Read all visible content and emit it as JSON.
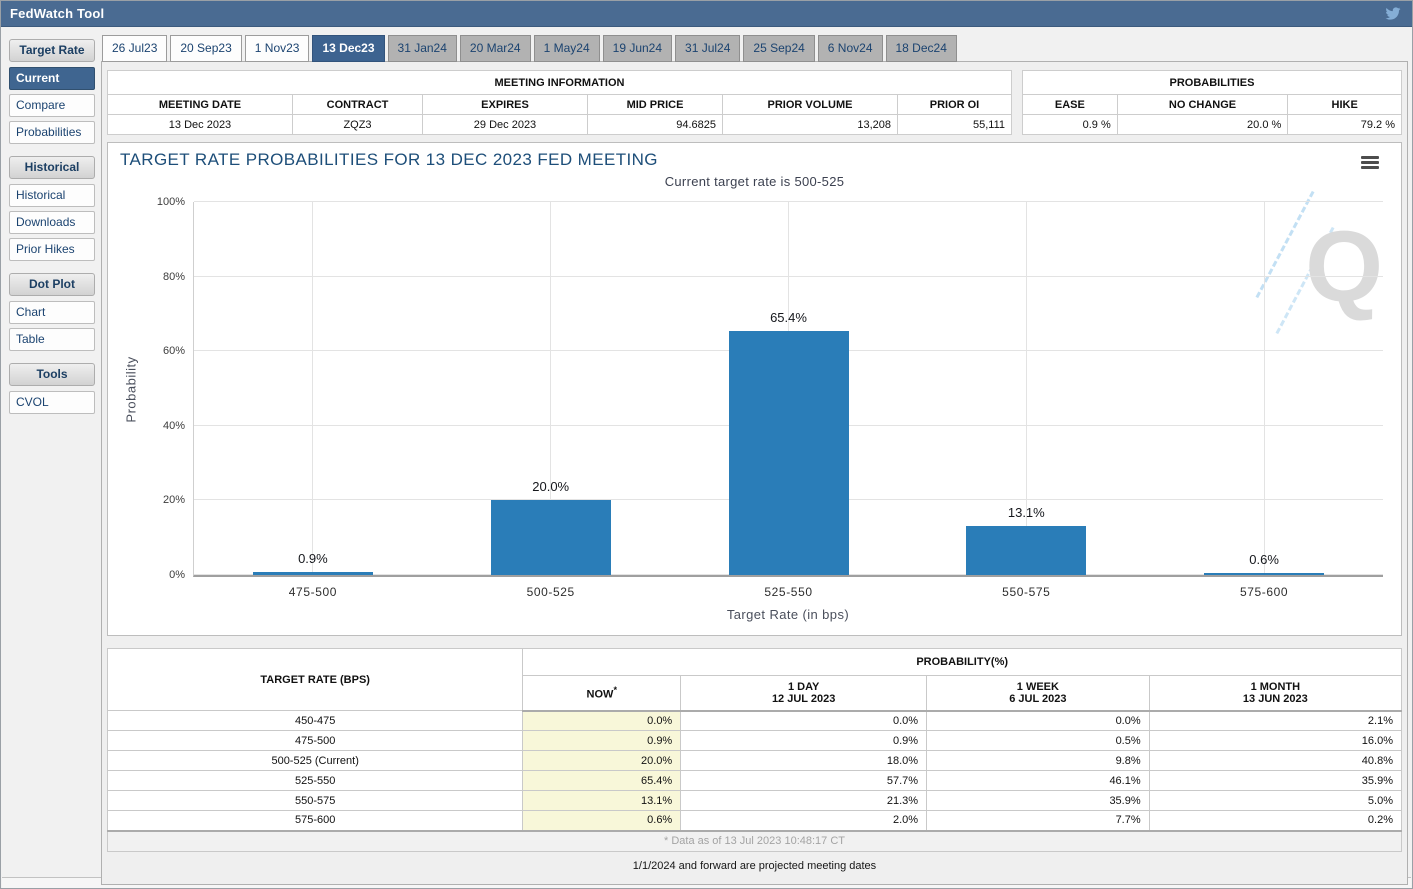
{
  "header": {
    "title": "FedWatch Tool",
    "social_icon": "twitter-icon"
  },
  "colors": {
    "header_bar": "#4a6b92",
    "accent_selected": "#3d6390",
    "bar": "#2a7db8",
    "now_highlight": "#f8f7d9",
    "twitter_blue": "#85aed6"
  },
  "tabs": [
    {
      "label": "26 Jul23",
      "variant": "light"
    },
    {
      "label": "20 Sep23",
      "variant": "light"
    },
    {
      "label": "1 Nov23",
      "variant": "light"
    },
    {
      "label": "13 Dec23",
      "variant": "selected",
      "selected": true
    },
    {
      "label": "31 Jan24",
      "variant": "gray"
    },
    {
      "label": "20 Mar24",
      "variant": "gray"
    },
    {
      "label": "1 May24",
      "variant": "gray"
    },
    {
      "label": "19 Jun24",
      "variant": "gray"
    },
    {
      "label": "31 Jul24",
      "variant": "gray"
    },
    {
      "label": "25 Sep24",
      "variant": "gray"
    },
    {
      "label": "6 Nov24",
      "variant": "gray"
    },
    {
      "label": "18 Dec24",
      "variant": "gray"
    }
  ],
  "sidebar": {
    "sections": [
      {
        "header": "Target Rate",
        "items": [
          {
            "label": "Current",
            "selected": true
          },
          {
            "label": "Compare",
            "selected": false
          },
          {
            "label": "Probabilities",
            "selected": false
          }
        ]
      },
      {
        "header": "Historical",
        "items": [
          {
            "label": "Historical",
            "selected": false
          },
          {
            "label": "Downloads",
            "selected": false
          },
          {
            "label": "Prior Hikes",
            "selected": false
          }
        ]
      },
      {
        "header": "Dot Plot",
        "items": [
          {
            "label": "Chart",
            "selected": false
          },
          {
            "label": "Table",
            "selected": false
          }
        ]
      },
      {
        "header": "Tools",
        "items": [
          {
            "label": "CVOL",
            "selected": false
          }
        ]
      }
    ]
  },
  "meeting_info": {
    "title": "MEETING INFORMATION",
    "columns": [
      "MEETING DATE",
      "CONTRACT",
      "EXPIRES",
      "MID PRICE",
      "PRIOR VOLUME",
      "PRIOR OI"
    ],
    "values": [
      "13 Dec 2023",
      "ZQZ3",
      "29 Dec 2023",
      "94.6825",
      "13,208",
      "55,111"
    ]
  },
  "probabilities_summary": {
    "title": "PROBABILITIES",
    "columns": [
      "EASE",
      "NO CHANGE",
      "HIKE"
    ],
    "values": [
      "0.9 %",
      "20.0 %",
      "79.2 %"
    ]
  },
  "chart": {
    "watermark_letter": "Q"
  },
  "chart_data": {
    "type": "bar",
    "title": "TARGET RATE PROBABILITIES FOR 13 DEC 2023 FED MEETING",
    "subtitle": "Current target rate is 500-525",
    "categories": [
      "475-500",
      "500-525",
      "525-550",
      "550-575",
      "575-600"
    ],
    "values": [
      0.9,
      20.0,
      65.4,
      13.1,
      0.6
    ],
    "labels": [
      "0.9%",
      "20.0%",
      "65.4%",
      "13.1%",
      "0.6%"
    ],
    "xlabel": "Target Rate (in bps)",
    "ylabel": "Probability",
    "ylim": [
      0,
      100
    ],
    "yticks": [
      "0%",
      "20%",
      "40%",
      "60%",
      "80%",
      "100%"
    ],
    "grid": true,
    "legend": "none"
  },
  "prob_table": {
    "corner_header": "TARGET RATE (BPS)",
    "group_header": "PROBABILITY(%)",
    "columns": [
      {
        "label": "NOW",
        "sup": "*"
      },
      {
        "label": "1 DAY",
        "date": "12 JUL 2023"
      },
      {
        "label": "1 WEEK",
        "date": "6 JUL 2023"
      },
      {
        "label": "1 MONTH",
        "date": "13 JUN 2023"
      }
    ],
    "rows": [
      {
        "rate": "450-475",
        "now": "0.0%",
        "day": "0.0%",
        "week": "0.0%",
        "month": "2.1%"
      },
      {
        "rate": "475-500",
        "now": "0.9%",
        "day": "0.9%",
        "week": "0.5%",
        "month": "16.0%"
      },
      {
        "rate": "500-525 (Current)",
        "now": "20.0%",
        "day": "18.0%",
        "week": "9.8%",
        "month": "40.8%"
      },
      {
        "rate": "525-550",
        "now": "65.4%",
        "day": "57.7%",
        "week": "46.1%",
        "month": "35.9%"
      },
      {
        "rate": "550-575",
        "now": "13.1%",
        "day": "21.3%",
        "week": "35.9%",
        "month": "5.0%"
      },
      {
        "rate": "575-600",
        "now": "0.6%",
        "day": "2.0%",
        "week": "7.7%",
        "month": "0.2%"
      }
    ],
    "footnote": "* Data as of 13 Jul 2023 10:48:17 CT"
  },
  "notes": {
    "projected": "1/1/2024 and forward are projected meeting dates"
  }
}
